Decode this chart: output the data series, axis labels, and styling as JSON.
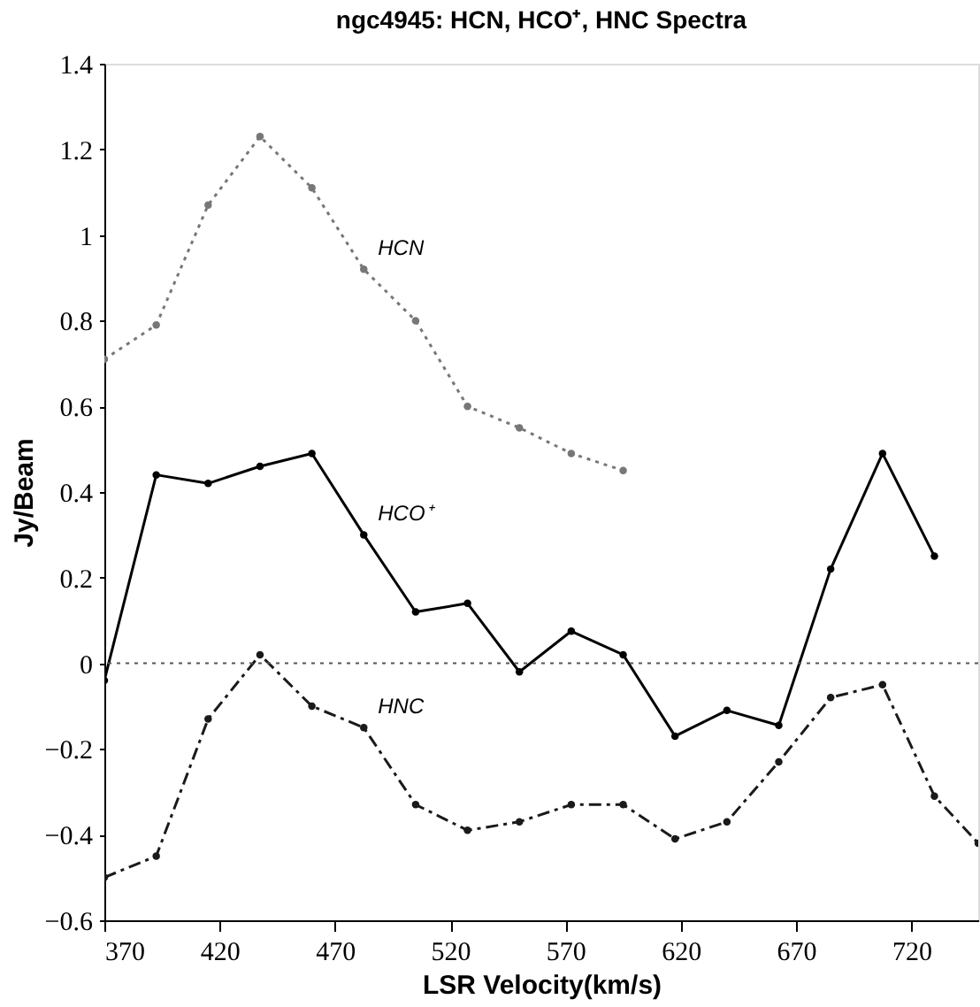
{
  "chart_data": {
    "type": "line",
    "title": "ngc4945: HCN, HCO⁺, HNC Spectra",
    "xlabel": "LSR Velocity(km/s)",
    "ylabel": "Jy/Beam",
    "xlim": [
      370,
      749
    ],
    "xticks": [
      370,
      420,
      470,
      520,
      570,
      620,
      670,
      720
    ],
    "ylim": [
      -0.6,
      1.4
    ],
    "yticks": [
      -0.6,
      -0.4,
      -0.2,
      0,
      0.2,
      0.4,
      0.6,
      0.8,
      1,
      1.2,
      1.4
    ],
    "grid": false,
    "legend": false,
    "marker": "circle",
    "ref_lines": [
      {
        "axis": "y",
        "value": 0,
        "line_style": "dotted",
        "color": "#555555"
      }
    ],
    "series": [
      {
        "name": "HCN",
        "color": "#777777",
        "line_style": "dotted",
        "x": [
          370,
          392.5,
          415,
          437.5,
          460,
          482.5,
          505,
          527.5,
          550,
          572.5,
          595
        ],
        "values": [
          0.71,
          0.79,
          1.07,
          1.23,
          1.11,
          0.92,
          0.8,
          0.6,
          0.55,
          0.49,
          0.45
        ]
      },
      {
        "name": "HCO⁺",
        "color": "#000000",
        "line_style": "solid",
        "x": [
          370,
          392.5,
          415,
          437.5,
          460,
          482.5,
          505,
          527.5,
          550,
          572.5,
          595,
          617.5,
          640,
          662.5,
          685,
          707.5,
          730
        ],
        "values": [
          -0.04,
          0.44,
          0.42,
          0.46,
          0.49,
          0.3,
          0.12,
          0.14,
          -0.02,
          0.075,
          0.02,
          -0.17,
          -0.11,
          -0.145,
          0.22,
          0.49,
          0.25
        ]
      },
      {
        "name": "HNC",
        "color": "#1a1a1a",
        "line_style": "dashed",
        "x": [
          370,
          392.5,
          415,
          437.5,
          460,
          482.5,
          505,
          527.5,
          550,
          572.5,
          595,
          617.5,
          640,
          662.5,
          685,
          707.5,
          730,
          749
        ],
        "values": [
          -0.5,
          -0.45,
          -0.13,
          0.02,
          -0.1,
          -0.15,
          -0.33,
          -0.39,
          -0.37,
          -0.33,
          -0.33,
          -0.41,
          -0.37,
          -0.23,
          -0.08,
          -0.05,
          -0.31,
          -0.42
        ]
      }
    ]
  }
}
